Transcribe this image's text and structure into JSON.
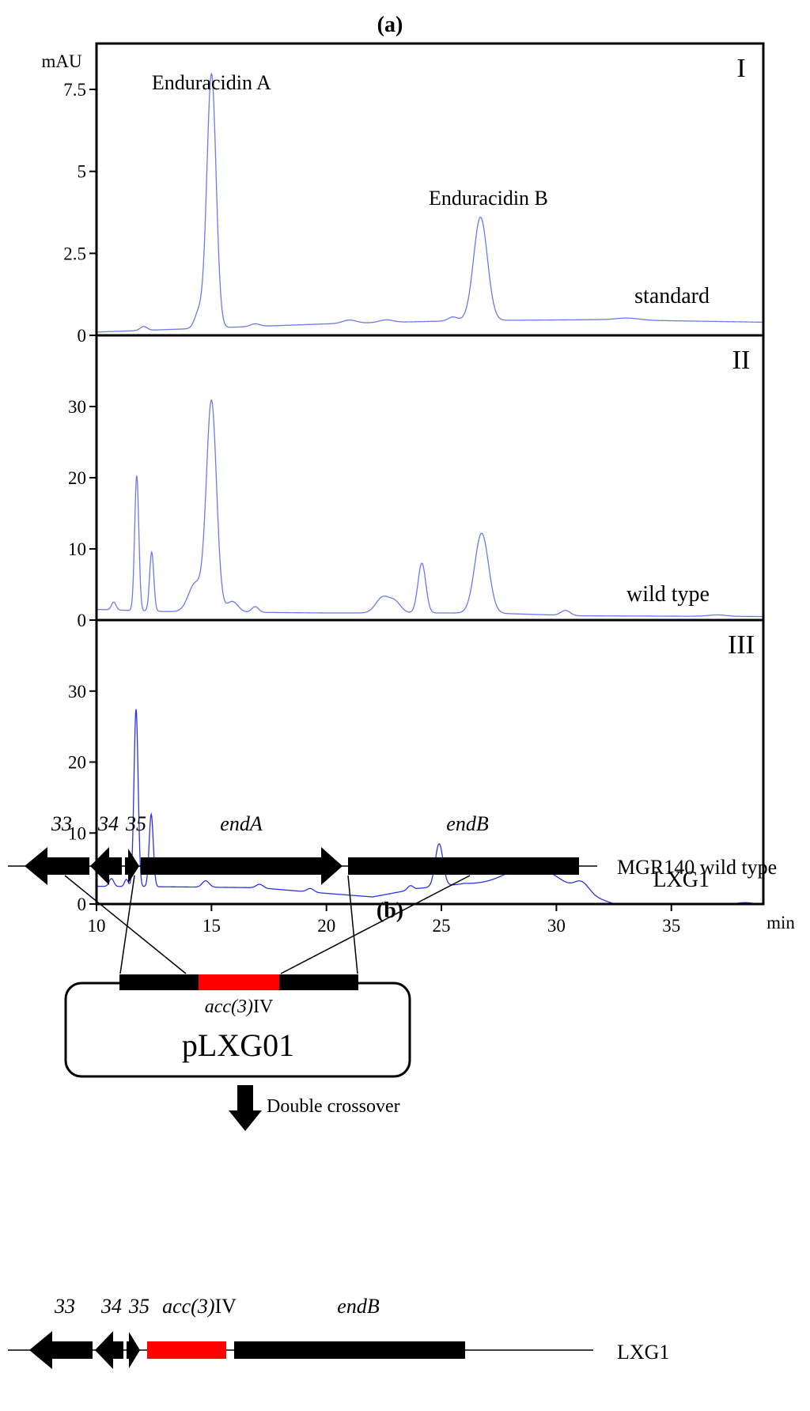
{
  "panel_a_label": "(a)",
  "panel_b_label": "(b)",
  "chart_data": [
    {
      "type": "line",
      "roman": "I",
      "sample_label": "standard",
      "ylabel": "mAU",
      "xlim": [
        10,
        39
      ],
      "ylim": [
        0,
        8.9
      ],
      "yticks": [
        0,
        2.5,
        5,
        7.5
      ],
      "ytick_labels": [
        "0",
        "2.5",
        "5",
        "7.5"
      ],
      "color": "#6f79e8",
      "baseline": [
        [
          10,
          0.1
        ],
        [
          20,
          0.35
        ],
        [
          26,
          0.45
        ],
        [
          32,
          0.48
        ],
        [
          39,
          0.4
        ]
      ],
      "peaks": [
        {
          "x": 12.05,
          "h": 0.12,
          "w": 0.15
        },
        {
          "x": 14.45,
          "h": 0.5,
          "w": 0.18
        },
        {
          "x": 15.0,
          "h": 7.75,
          "w": 0.2
        },
        {
          "x": 16.9,
          "h": 0.08,
          "w": 0.2
        },
        {
          "x": 21.0,
          "h": 0.1,
          "w": 0.3
        },
        {
          "x": 22.6,
          "h": 0.08,
          "w": 0.3
        },
        {
          "x": 25.5,
          "h": 0.12,
          "w": 0.2
        },
        {
          "x": 26.7,
          "h": 3.15,
          "w": 0.3
        },
        {
          "x": 33.1,
          "h": 0.06,
          "w": 0.5
        }
      ],
      "annotations": [
        {
          "text": "Enduracidin A",
          "x": 15.0
        },
        {
          "text": "Enduracidin B",
          "x": 26.7
        }
      ]
    },
    {
      "type": "line",
      "roman": "II",
      "sample_label": "wild type",
      "xlim": [
        10,
        39
      ],
      "ylim": [
        0,
        40
      ],
      "yticks": [
        0,
        10,
        20,
        30
      ],
      "ytick_labels": [
        "0",
        "10",
        "20",
        "30"
      ],
      "color": "#6f79e8",
      "baseline": [
        [
          10,
          1.5
        ],
        [
          13,
          1.2
        ],
        [
          20,
          1.0
        ],
        [
          27,
          1.0
        ],
        [
          31,
          0.6
        ],
        [
          39,
          0.5
        ]
      ],
      "peaks": [
        {
          "x": 10.75,
          "h": 1.1,
          "w": 0.1
        },
        {
          "x": 11.75,
          "h": 19.0,
          "w": 0.09
        },
        {
          "x": 12.4,
          "h": 8.3,
          "w": 0.09
        },
        {
          "x": 14.3,
          "h": 4.0,
          "w": 0.3
        },
        {
          "x": 15.0,
          "h": 29.5,
          "w": 0.22
        },
        {
          "x": 15.9,
          "h": 1.5,
          "w": 0.25
        },
        {
          "x": 16.9,
          "h": 0.8,
          "w": 0.15
        },
        {
          "x": 22.45,
          "h": 2.2,
          "w": 0.3
        },
        {
          "x": 23.0,
          "h": 1.4,
          "w": 0.25
        },
        {
          "x": 24.15,
          "h": 7.0,
          "w": 0.17
        },
        {
          "x": 26.75,
          "h": 11.2,
          "w": 0.3
        },
        {
          "x": 30.4,
          "h": 0.7,
          "w": 0.2
        },
        {
          "x": 37.0,
          "h": 0.2,
          "w": 0.4
        }
      ],
      "annotations": []
    },
    {
      "type": "line",
      "roman": "III",
      "sample_label": "LXG1",
      "xlabel": "min",
      "xlim": [
        10,
        39
      ],
      "ylim": [
        0,
        40
      ],
      "yticks": [
        0,
        10,
        20,
        30
      ],
      "ytick_labels": [
        "0",
        "10",
        "20",
        "30"
      ],
      "xticks": [
        10,
        15,
        20,
        25,
        30,
        35
      ],
      "xtick_labels": [
        "10",
        "15",
        "20",
        "25",
        "30",
        "35"
      ],
      "color": "#2e35d8",
      "baseline": [
        [
          10,
          2.5
        ],
        [
          14,
          2.4
        ],
        [
          17,
          2.3
        ],
        [
          20,
          1.5
        ],
        [
          22,
          1.0
        ],
        [
          24,
          2.2
        ],
        [
          26,
          2.8
        ],
        [
          31.5,
          1.0
        ],
        [
          32.5,
          0.0
        ],
        [
          39,
          0.0
        ]
      ],
      "peaks": [
        {
          "x": 10.65,
          "h": 1.1,
          "w": 0.1
        },
        {
          "x": 11.3,
          "h": 1.0,
          "w": 0.08
        },
        {
          "x": 11.72,
          "h": 25.0,
          "w": 0.09
        },
        {
          "x": 12.38,
          "h": 10.2,
          "w": 0.09
        },
        {
          "x": 14.75,
          "h": 0.9,
          "w": 0.15
        },
        {
          "x": 17.1,
          "h": 0.5,
          "w": 0.15
        },
        {
          "x": 19.3,
          "h": 0.5,
          "w": 0.15
        },
        {
          "x": 23.65,
          "h": 0.6,
          "w": 0.12
        },
        {
          "x": 24.9,
          "h": 6.0,
          "w": 0.17
        },
        {
          "x": 29.0,
          "h": 3.5,
          "w": 1.15
        },
        {
          "x": 31.1,
          "h": 1.4,
          "w": 0.3
        },
        {
          "x": 38.2,
          "h": 0.2,
          "w": 0.3
        }
      ],
      "annotations": []
    }
  ],
  "gene_map": {
    "wild_type": {
      "strain_label": "MGR140 wild type",
      "genes": [
        {
          "label": "33",
          "kind": "arrow-left",
          "italic": true
        },
        {
          "label": "34",
          "kind": "arrow-left",
          "italic": true
        },
        {
          "label": "35",
          "kind": "arrow-right",
          "italic": true
        },
        {
          "label": "endA",
          "kind": "arrow-right",
          "italic": true
        },
        {
          "label": "endB",
          "kind": "bar",
          "italic": true
        }
      ]
    },
    "plasmid": {
      "name": "pLXG01",
      "insert_label_italic": "acc(3)",
      "insert_label_suffix": "IV",
      "insert_color": "#ff0000"
    },
    "step_label": "Double crossover",
    "mutant": {
      "strain_label": "LXG1",
      "genes": [
        {
          "label": "33",
          "kind": "arrow-left",
          "italic": true
        },
        {
          "label": "34",
          "kind": "arrow-left",
          "italic": true
        },
        {
          "label": "35",
          "kind": "arrow-right",
          "italic": true
        },
        {
          "label": "acc(3)",
          "suffix": "IV",
          "kind": "insert",
          "italic": true
        },
        {
          "label": "endB",
          "kind": "bar",
          "italic": true
        }
      ]
    }
  }
}
